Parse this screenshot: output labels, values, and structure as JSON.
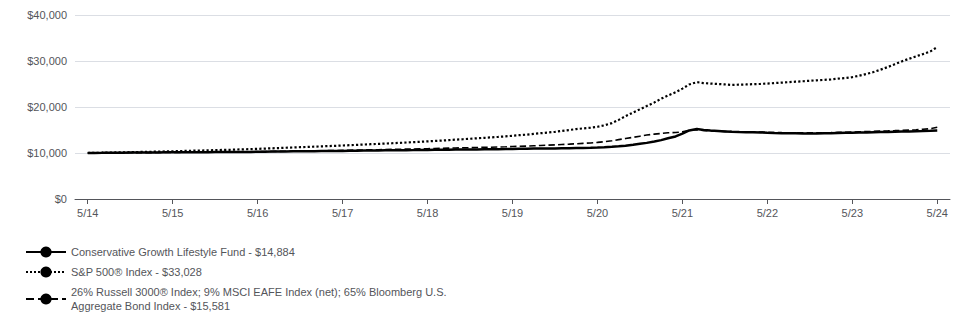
{
  "chart_data": {
    "type": "line",
    "x": [
      0,
      0.08,
      0.17,
      0.25,
      0.33,
      0.42,
      0.5,
      0.58,
      0.67,
      0.75,
      0.83,
      0.92,
      1,
      1.08,
      1.17,
      1.25,
      1.33,
      1.42,
      1.5,
      1.58,
      1.67,
      1.75,
      1.83,
      1.92,
      2,
      2.08,
      2.17,
      2.25,
      2.33,
      2.42,
      2.5,
      2.58,
      2.67,
      2.75,
      2.83,
      2.92,
      3,
      3.08,
      3.17,
      3.25,
      3.33,
      3.42,
      3.5,
      3.58,
      3.67,
      3.75,
      3.83,
      3.92,
      4,
      4.08,
      4.17,
      4.25,
      4.33,
      4.42,
      4.5,
      4.58,
      4.67,
      4.75,
      4.83,
      4.92,
      5,
      5.08,
      5.17,
      5.25,
      5.33,
      5.42,
      5.5,
      5.58,
      5.67,
      5.75,
      5.83,
      5.92,
      6,
      6.08,
      6.17,
      6.25,
      6.33,
      6.42,
      6.5,
      6.58,
      6.67,
      6.75,
      6.83,
      6.92,
      7,
      7.08,
      7.17,
      7.25,
      7.33,
      7.42,
      7.5,
      7.58,
      7.67,
      7.75,
      7.83,
      7.92,
      8,
      8.08,
      8.17,
      8.25,
      8.33,
      8.42,
      8.5,
      8.58,
      8.67,
      8.75,
      8.83,
      8.92,
      9,
      9.08,
      9.17,
      9.25,
      9.33,
      9.42,
      9.5,
      9.58,
      9.67,
      9.75,
      9.83,
      9.92,
      10
    ],
    "xlim": [
      -0.15,
      10.15
    ],
    "xticks": [
      {
        "value": 0,
        "label": "5/14"
      },
      {
        "value": 1,
        "label": "5/15"
      },
      {
        "value": 2,
        "label": "5/16"
      },
      {
        "value": 3,
        "label": "5/17"
      },
      {
        "value": 4,
        "label": "5/18"
      },
      {
        "value": 5,
        "label": "5/19"
      },
      {
        "value": 6,
        "label": "5/20"
      },
      {
        "value": 7,
        "label": "5/21"
      },
      {
        "value": 8,
        "label": "5/22"
      },
      {
        "value": 9,
        "label": "5/23"
      },
      {
        "value": 10,
        "label": "5/24"
      }
    ],
    "ylim": [
      0,
      40000
    ],
    "yticks": [
      {
        "value": 0,
        "label": "$0"
      },
      {
        "value": 10000,
        "label": "$10,000"
      },
      {
        "value": 20000,
        "label": "$20,000"
      },
      {
        "value": 30000,
        "label": "$30,000"
      },
      {
        "value": 40000,
        "label": "$40,000"
      }
    ],
    "grid": true,
    "legend": "lower left",
    "series": [
      {
        "name": "Conservative Growth Lifestyle Fund - $14,884",
        "color": "#000000",
        "line_style": "solid",
        "values": [
          10000,
          10020,
          10040,
          10060,
          10070,
          10080,
          10090,
          10100,
          10110,
          10120,
          10130,
          10150,
          10160,
          10170,
          10175,
          10180,
          10185,
          10190,
          10195,
          10200,
          10210,
          10220,
          10230,
          10240,
          10260,
          10280,
          10300,
          10320,
          10340,
          10360,
          10375,
          10390,
          10400,
          10410,
          10420,
          10440,
          10460,
          10480,
          10500,
          10520,
          10540,
          10560,
          10575,
          10590,
          10600,
          10615,
          10630,
          10650,
          10670,
          10690,
          10710,
          10730,
          10750,
          10760,
          10770,
          10780,
          10790,
          10800,
          10820,
          10850,
          10880,
          10910,
          10940,
          10960,
          10975,
          10990,
          11000,
          11020,
          11040,
          11070,
          11100,
          11140,
          11180,
          11250,
          11340,
          11450,
          11600,
          11800,
          12000,
          12200,
          12500,
          12800,
          13200,
          13600,
          14200,
          14900,
          15200,
          15000,
          14900,
          14800,
          14700,
          14600,
          14550,
          14520,
          14500,
          14480,
          14400,
          14350,
          14300,
          14280,
          14270,
          14260,
          14250,
          14260,
          14280,
          14300,
          14340,
          14380,
          14400,
          14430,
          14460,
          14500,
          14540,
          14580,
          14620,
          14660,
          14700,
          14740,
          14780,
          14830,
          14884
        ]
      },
      {
        "name": "S&P 500® Index - $33,028",
        "color": "#000000",
        "line_style": "dotted",
        "values": [
          10000,
          10030,
          10060,
          10090,
          10120,
          10150,
          10180,
          10210,
          10240,
          10270,
          10300,
          10340,
          10380,
          10420,
          10460,
          10500,
          10540,
          10580,
          10620,
          10660,
          10700,
          10750,
          10800,
          10850,
          10900,
          10960,
          11020,
          11080,
          11140,
          11200,
          11260,
          11320,
          11380,
          11440,
          11500,
          11560,
          11630,
          11700,
          11770,
          11840,
          11910,
          11980,
          12050,
          12120,
          12200,
          12280,
          12360,
          12440,
          12530,
          12620,
          12710,
          12800,
          12900,
          13000,
          13100,
          13200,
          13300,
          13400,
          13500,
          13620,
          13750,
          13880,
          14000,
          14150,
          14300,
          14450,
          14600,
          14800,
          15000,
          15200,
          15350,
          15500,
          15700,
          16000,
          16500,
          17200,
          18000,
          18800,
          19500,
          20200,
          21000,
          21800,
          22500,
          23200,
          24000,
          24900,
          25400,
          25200,
          25100,
          25000,
          24900,
          24800,
          24850,
          24900,
          24960,
          25020,
          25100,
          25200,
          25300,
          25400,
          25500,
          25600,
          25700,
          25800,
          25900,
          26000,
          26150,
          26300,
          26500,
          26800,
          27200,
          27600,
          28100,
          28700,
          29300,
          29900,
          30500,
          31000,
          31500,
          32100,
          33028
        ]
      },
      {
        "name": "26% Russell 3000® Index; 9% MSCI EAFE Index (net); 65% Bloomberg U.S.\nAggregate Bond Index - $15,581",
        "color": "#000000",
        "line_style": "dashed",
        "values": [
          10000,
          10010,
          10020,
          10030,
          10040,
          10050,
          10060,
          10070,
          10080,
          10090,
          10100,
          10115,
          10130,
          10145,
          10155,
          10165,
          10175,
          10185,
          10195,
          10210,
          10225,
          10240,
          10255,
          10270,
          10290,
          10310,
          10330,
          10350,
          10375,
          10400,
          10420,
          10440,
          10460,
          10480,
          10510,
          10540,
          10570,
          10600,
          10630,
          10660,
          10690,
          10720,
          10750,
          10780,
          10810,
          10840,
          10870,
          10900,
          10940,
          10980,
          11020,
          11060,
          11100,
          11130,
          11160,
          11195,
          11230,
          11265,
          11300,
          11350,
          11400,
          11455,
          11510,
          11570,
          11630,
          11700,
          11770,
          11840,
          11920,
          12010,
          12100,
          12190,
          12300,
          12450,
          12650,
          12900,
          13150,
          13400,
          13650,
          13900,
          14100,
          14250,
          14400,
          14450,
          14600,
          14900,
          15050,
          14900,
          14820,
          14750,
          14700,
          14650,
          14620,
          14600,
          14580,
          14560,
          14500,
          14460,
          14420,
          14400,
          14390,
          14385,
          14380,
          14390,
          14410,
          14440,
          14480,
          14520,
          14560,
          14610,
          14660,
          14710,
          14760,
          14810,
          14860,
          14920,
          14980,
          15060,
          15150,
          15280,
          15581
        ]
      }
    ]
  }
}
